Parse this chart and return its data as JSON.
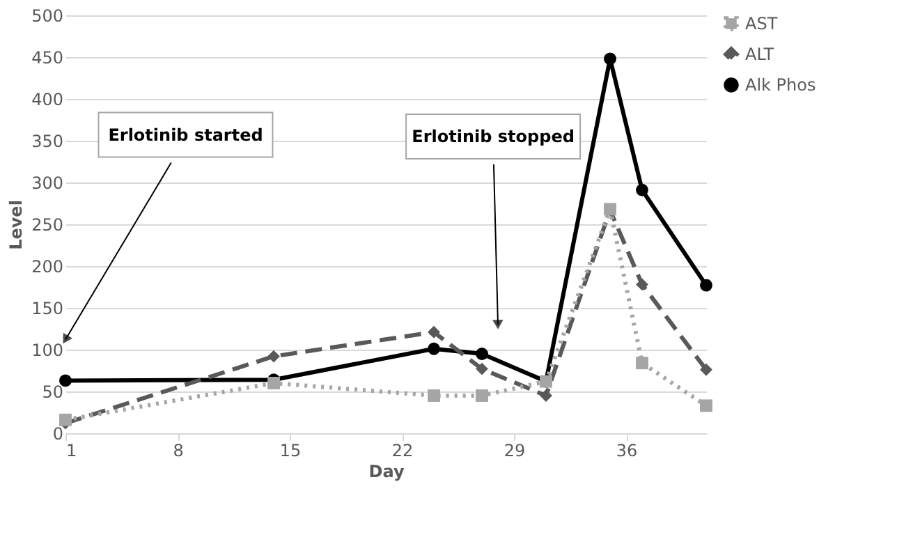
{
  "chart_data": {
    "type": "line",
    "xlabel": "Day",
    "ylabel": "Level",
    "xlim": [
      1,
      41
    ],
    "xticks": [
      1,
      8,
      15,
      22,
      29,
      36
    ],
    "ylim": [
      0,
      500
    ],
    "yticks": [
      0,
      50,
      100,
      150,
      200,
      250,
      300,
      350,
      400,
      450,
      500
    ],
    "grid": "y",
    "legend": "right",
    "series": [
      {
        "name": "AST",
        "color": "#a5a5a5",
        "line_style": "dotted",
        "marker": "square",
        "x": [
          1,
          14,
          24,
          27,
          31,
          35,
          37,
          41
        ],
        "values": [
          16,
          60,
          45,
          45,
          62,
          268,
          84,
          33
        ]
      },
      {
        "name": "ALT",
        "color": "#595959",
        "line_style": "dashed",
        "marker": "diamond",
        "x": [
          1,
          14,
          24,
          27,
          31,
          35,
          37,
          41
        ],
        "values": [
          12,
          92,
          121,
          77,
          45,
          267,
          178,
          76
        ]
      },
      {
        "name": "Alk Phos",
        "color": "#000000",
        "line_style": "solid",
        "marker": "circle",
        "x": [
          1,
          14,
          24,
          27,
          31,
          35,
          37,
          41
        ],
        "values": [
          63,
          64,
          101,
          95,
          62,
          448,
          291,
          177
        ]
      }
    ],
    "annotations": [
      {
        "text": "Erlotinib started",
        "x": 1,
        "y": 112
      },
      {
        "text": "Erlotinib stopped",
        "x": 28,
        "y": 130
      }
    ]
  }
}
